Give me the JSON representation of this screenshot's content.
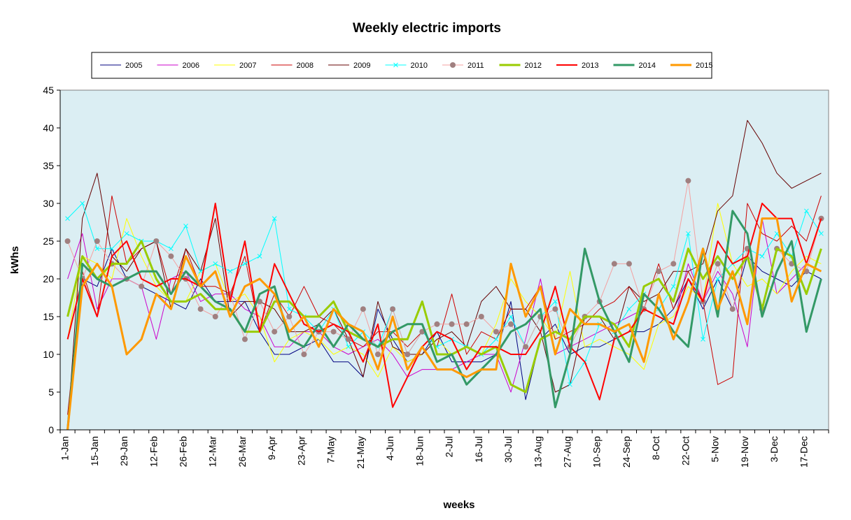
{
  "chart_data": {
    "type": "line",
    "title": "Weekly electric imports",
    "xlabel": "weeks",
    "ylabel": "kWhs",
    "ylim": [
      0,
      45
    ],
    "y_ticks": [
      0,
      5,
      10,
      15,
      20,
      25,
      30,
      35,
      40,
      45
    ],
    "x_tick_labels": [
      "1-Jan",
      "15-Jan",
      "29-Jan",
      "12-Feb",
      "26-Feb",
      "12-Mar",
      "26-Mar",
      "9-Apr",
      "23-Apr",
      "7-May",
      "21-May",
      "4-Jun",
      "18-Jun",
      "2-Jul",
      "16-Jul",
      "30-Jul",
      "13-Aug",
      "27-Aug",
      "10-Sep",
      "24-Sep",
      "8-Oct",
      "22-Oct",
      "5-Nov",
      "19-Nov",
      "3-Dec",
      "17-Dec"
    ],
    "x": [
      "1-Jan",
      "8-Jan",
      "15-Jan",
      "22-Jan",
      "29-Jan",
      "5-Feb",
      "12-Feb",
      "19-Feb",
      "26-Feb",
      "5-Mar",
      "12-Mar",
      "19-Mar",
      "26-Mar",
      "2-Apr",
      "9-Apr",
      "16-Apr",
      "23-Apr",
      "30-Apr",
      "7-May",
      "14-May",
      "21-May",
      "28-May",
      "4-Jun",
      "11-Jun",
      "18-Jun",
      "25-Jun",
      "2-Jul",
      "9-Jul",
      "16-Jul",
      "23-Jul",
      "30-Jul",
      "6-Aug",
      "13-Aug",
      "20-Aug",
      "27-Aug",
      "3-Sep",
      "10-Sep",
      "17-Sep",
      "24-Sep",
      "1-Oct",
      "8-Oct",
      "15-Oct",
      "22-Oct",
      "29-Oct",
      "5-Nov",
      "12-Nov",
      "19-Nov",
      "26-Nov",
      "3-Dec",
      "10-Dec",
      "17-Dec",
      "24-Dec"
    ],
    "grid": false,
    "legend_position": "top",
    "plot_background": "#dbeef3",
    "series": [
      {
        "name": "2005",
        "color": "#000080",
        "width": 1,
        "marker": "none",
        "values": [
          0,
          20,
          19,
          24,
          20,
          19,
          18,
          17,
          16,
          20,
          17,
          17,
          17,
          13,
          10,
          10,
          11,
          12,
          9,
          9,
          7,
          16,
          12,
          9,
          10,
          13,
          9,
          9,
          9,
          10,
          17,
          4,
          12,
          14,
          10,
          11,
          11,
          12,
          13,
          13,
          14,
          16,
          20,
          16,
          20,
          16,
          23,
          21,
          20,
          19,
          21,
          20
        ]
      },
      {
        "name": "2006",
        "color": "#cc00cc",
        "width": 1,
        "marker": "none",
        "values": [
          20,
          26,
          16,
          20,
          20,
          19,
          12,
          20,
          21,
          17,
          18,
          18,
          16,
          15,
          11,
          11,
          13,
          13,
          11,
          10,
          11,
          12,
          10,
          7,
          8,
          8,
          8,
          9,
          10,
          10,
          5,
          12,
          20,
          10,
          11,
          12,
          13,
          14,
          15,
          16,
          15,
          14,
          22,
          17,
          21,
          18,
          11,
          28,
          18,
          20,
          22,
          21
        ]
      },
      {
        "name": "2007",
        "color": "#ffff00",
        "width": 1,
        "marker": "none",
        "values": [
          12,
          23,
          22,
          20,
          28,
          23,
          19,
          17,
          17,
          21,
          22,
          17,
          18,
          15,
          9,
          12,
          13,
          12,
          10,
          11,
          10,
          7,
          11,
          9,
          10,
          12,
          10,
          11,
          10,
          14,
          20,
          17,
          15,
          12,
          21,
          11,
          12,
          11,
          10,
          8,
          14,
          15,
          19,
          17,
          30,
          22,
          19,
          20,
          18,
          21,
          23,
          22
        ]
      },
      {
        "name": "2008",
        "color": "#cc0000",
        "width": 1,
        "marker": "none",
        "values": [
          2,
          21,
          15,
          31,
          22,
          24,
          25,
          18,
          24,
          19,
          19,
          18,
          23,
          13,
          18,
          15,
          19,
          15,
          14,
          12,
          11,
          13,
          13,
          11,
          13,
          11,
          18,
          10,
          13,
          12,
          16,
          16,
          19,
          12,
          13,
          14,
          16,
          17,
          19,
          16,
          22,
          16,
          21,
          17,
          6,
          7,
          30,
          26,
          25,
          27,
          25,
          31
        ]
      },
      {
        "name": "2009",
        "color": "#660000",
        "width": 1,
        "marker": "none",
        "values": [
          0,
          28,
          34,
          23,
          21,
          24,
          25,
          16,
          24,
          21,
          28,
          15,
          17,
          17,
          16,
          13,
          13,
          14,
          16,
          12,
          7,
          17,
          11,
          10,
          10,
          12,
          13,
          11,
          17,
          19,
          16,
          16,
          13,
          5,
          6,
          15,
          15,
          12,
          19,
          17,
          18,
          21,
          21,
          22,
          29,
          31,
          41,
          38,
          34,
          32,
          33,
          34
        ]
      },
      {
        "name": "2010",
        "color": "#00ffff",
        "width": 1,
        "marker": "x",
        "values": [
          28,
          30,
          24,
          24,
          26,
          25,
          25,
          24,
          27,
          21,
          22,
          21,
          22,
          23,
          28,
          16,
          15,
          13,
          16,
          11,
          13,
          11,
          16,
          10,
          13,
          11,
          12,
          11,
          10,
          12,
          15,
          11,
          15,
          17,
          6,
          9,
          14,
          13,
          16,
          18,
          16,
          19,
          26,
          12,
          20,
          22,
          24,
          23,
          26,
          23,
          29,
          26
        ]
      },
      {
        "name": "2011",
        "color": "#f4a0a0",
        "marker_color": "#a08080",
        "width": 1,
        "marker": "dot",
        "values": [
          25,
          20,
          25,
          22,
          20,
          19,
          25,
          23,
          20,
          16,
          15,
          18,
          12,
          17,
          13,
          15,
          10,
          13,
          13,
          12,
          16,
          10,
          16,
          10,
          13,
          14,
          14,
          14,
          15,
          13,
          14,
          11,
          15,
          16,
          11,
          15,
          17,
          22,
          22,
          16,
          21,
          22,
          33,
          17,
          22,
          16,
          24,
          16,
          24,
          22,
          21,
          28
        ]
      },
      {
        "name": "2012",
        "color": "#99cc00",
        "width": 3,
        "marker": "none",
        "values": [
          15,
          23,
          20,
          22,
          22,
          25,
          20,
          17,
          17,
          18,
          16,
          16,
          13,
          13,
          17,
          17,
          15,
          15,
          17,
          13,
          12,
          11,
          12,
          12,
          17,
          10,
          10,
          11,
          10,
          11,
          6,
          5,
          12,
          13,
          12,
          15,
          15,
          14,
          11,
          19,
          20,
          17,
          24,
          20,
          23,
          20,
          23,
          16,
          24,
          23,
          18,
          24
        ]
      },
      {
        "name": "2013",
        "color": "#ff0000",
        "width": 2,
        "marker": "none",
        "values": [
          12,
          20,
          15,
          23,
          25,
          20,
          19,
          20,
          20,
          19,
          30,
          17,
          25,
          13,
          22,
          18,
          14,
          13,
          14,
          13,
          9,
          14,
          3,
          7,
          11,
          13,
          12,
          8,
          11,
          11,
          10,
          10,
          13,
          19,
          11,
          9,
          4,
          12,
          13,
          16,
          15,
          14,
          20,
          17,
          25,
          22,
          23,
          30,
          28,
          28,
          22,
          28
        ]
      },
      {
        "name": "2014",
        "color": "#339966",
        "width": 3,
        "marker": "none",
        "values": [
          0,
          22,
          20,
          19,
          20,
          21,
          21,
          18,
          21,
          19,
          17,
          16,
          13,
          18,
          19,
          12,
          11,
          14,
          11,
          14,
          12,
          11,
          13,
          14,
          14,
          9,
          10,
          6,
          8,
          10,
          13,
          14,
          16,
          3,
          10,
          24,
          17,
          13,
          9,
          18,
          16,
          13,
          11,
          24,
          15,
          29,
          26,
          15,
          21,
          25,
          13,
          20
        ]
      },
      {
        "name": "2015",
        "color": "#ff9900",
        "width": 3,
        "marker": "none",
        "values": [
          0,
          19,
          22,
          19,
          10,
          12,
          18,
          16,
          23,
          19,
          21,
          15,
          19,
          20,
          18,
          13,
          15,
          11,
          16,
          14,
          13,
          8,
          15,
          8,
          11,
          8,
          8,
          7,
          8,
          8,
          22,
          15,
          19,
          10,
          16,
          14,
          14,
          13,
          14,
          9,
          18,
          12,
          17,
          24,
          16,
          21,
          14,
          28,
          28,
          17,
          22,
          21
        ]
      }
    ]
  }
}
